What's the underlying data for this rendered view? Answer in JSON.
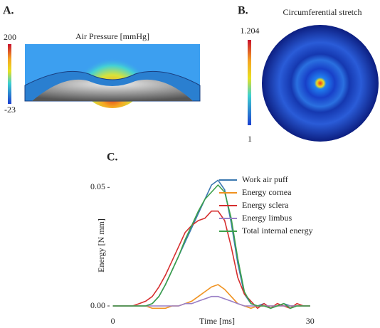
{
  "panel_a": {
    "label": "A.",
    "title": "Air Pressure [mmHg]",
    "colorbar_max": 200,
    "colorbar_min": -23
  },
  "panel_b": {
    "label": "B.",
    "title": "Circumferential stretch",
    "colorbar_max": 1.204,
    "colorbar_min": 1
  },
  "panel_c": {
    "label": "C."
  },
  "chart_data": {
    "type": "line",
    "xlabel": "Time [ms]",
    "ylabel": "Energy [N mm]",
    "x": [
      0,
      1,
      2,
      3,
      4,
      5,
      6,
      7,
      8,
      9,
      10,
      11,
      12,
      13,
      14,
      15,
      16,
      17,
      18,
      19,
      20,
      21,
      22,
      23,
      24,
      25,
      26,
      27,
      28,
      29,
      30
    ],
    "series": [
      {
        "name": "Work air puff",
        "color": "#3b78b0",
        "values": [
          0,
          0,
          0,
          0,
          0,
          0,
          0.001,
          0.004,
          0.009,
          0.015,
          0.021,
          0.027,
          0.033,
          0.039,
          0.045,
          0.051,
          0.053,
          0.049,
          0.035,
          0.018,
          0.005,
          0.001,
          0,
          0.001,
          -0.001,
          0,
          0.001,
          0,
          0,
          0,
          0
        ]
      },
      {
        "name": "Energy cornea",
        "color": "#f0921f",
        "values": [
          0,
          0,
          0,
          0,
          0,
          0,
          -0.001,
          -0.001,
          -0.001,
          0,
          0,
          0.001,
          0.002,
          0.004,
          0.006,
          0.008,
          0.009,
          0.007,
          0.004,
          0.001,
          0,
          -0.001,
          0,
          0,
          0,
          0,
          0,
          0,
          0,
          0,
          0
        ]
      },
      {
        "name": "Energy sclera",
        "color": "#d62f2f",
        "values": [
          0,
          0,
          0,
          0,
          0.001,
          0.002,
          0.004,
          0.008,
          0.013,
          0.019,
          0.025,
          0.031,
          0.034,
          0.036,
          0.037,
          0.04,
          0.04,
          0.036,
          0.025,
          0.012,
          0.005,
          0.002,
          -0.001,
          0.001,
          -0.001,
          0.001,
          0,
          -0.001,
          0.001,
          0,
          0
        ]
      },
      {
        "name": "Energy limbus",
        "color": "#9a7fc6",
        "values": [
          0,
          0,
          0,
          0,
          0,
          0,
          0,
          0,
          0,
          0,
          0,
          0.001,
          0.001,
          0.002,
          0.003,
          0.004,
          0.004,
          0.003,
          0.002,
          0.001,
          0,
          0,
          0,
          0,
          0,
          0,
          0,
          0,
          0,
          0,
          0
        ]
      },
      {
        "name": "Total internal energy",
        "color": "#3ca04a",
        "values": [
          0,
          0,
          0,
          0,
          0,
          0,
          0.001,
          0.004,
          0.009,
          0.015,
          0.021,
          0.028,
          0.034,
          0.04,
          0.045,
          0.048,
          0.051,
          0.048,
          0.037,
          0.02,
          0.006,
          0.001,
          0,
          0,
          -0.001,
          0,
          0.001,
          -0.001,
          0,
          0,
          0
        ]
      }
    ],
    "xlim": [
      -0.5,
      31
    ],
    "xticks": [
      0,
      30
    ],
    "ylim": [
      -0.003,
      0.054
    ],
    "yticks": [
      {
        "value": 0,
        "label": "0.00"
      },
      {
        "value": 0.05,
        "label": "0.05"
      }
    ],
    "grid": false,
    "legend": "upper right"
  }
}
